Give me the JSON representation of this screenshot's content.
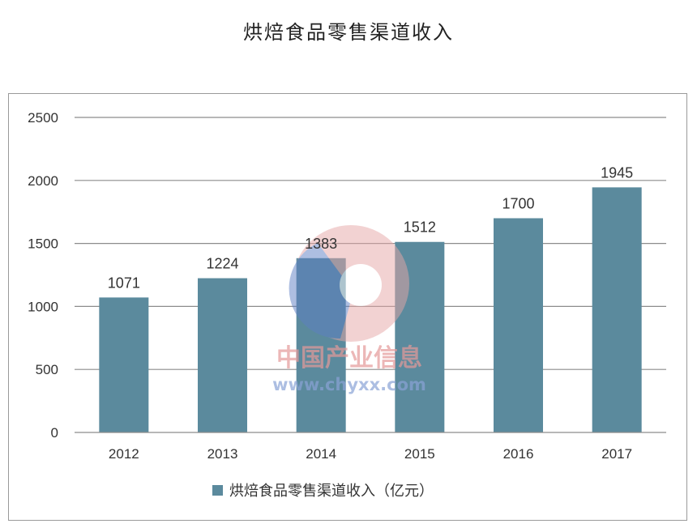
{
  "chart_data": {
    "type": "bar",
    "title": "烘焙食品零售渠道收入",
    "categories": [
      "2012",
      "2013",
      "2014",
      "2015",
      "2016",
      "2017"
    ],
    "series": [
      {
        "name": "烘焙食品零售渠道收入（亿元）",
        "values": [
          1071,
          1224,
          1383,
          1512,
          1700,
          1945
        ]
      }
    ],
    "ylim": [
      0,
      2500
    ],
    "yticks": [
      0,
      500,
      1000,
      1500,
      2000,
      2500
    ],
    "grid": true,
    "legend_position": "bottom",
    "bar_color": "#5b8a9d",
    "watermark": {
      "line1": "中国产业信息",
      "line2": "www.chyxx.com"
    }
  }
}
